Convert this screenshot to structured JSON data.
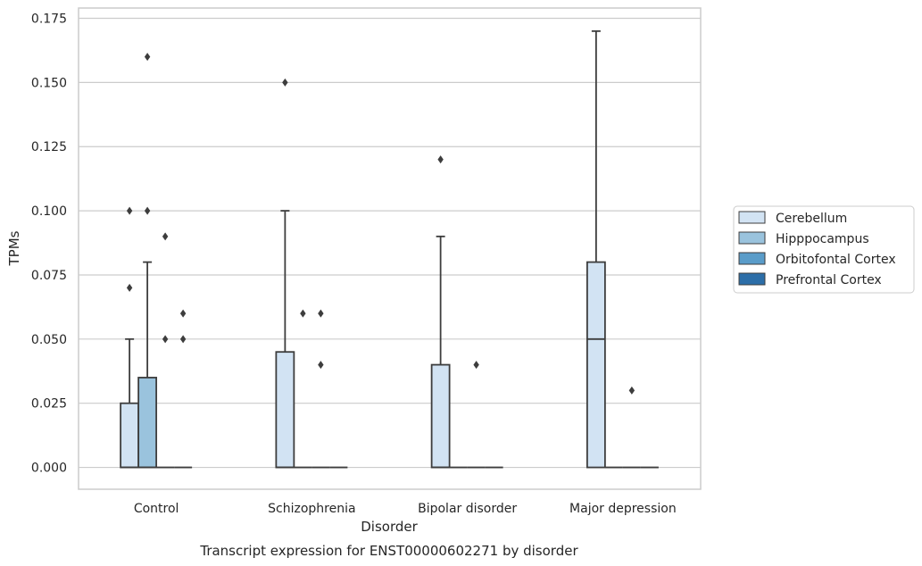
{
  "chart_data": {
    "type": "box",
    "title": "",
    "caption": "Transcript expression for ENST00000602271 by disorder",
    "xlabel": "Disorder",
    "ylabel": "TPMs",
    "ylim": [
      -0.0085,
      0.179
    ],
    "yticks": [
      0.0,
      0.025,
      0.05,
      0.075,
      0.1,
      0.125,
      0.15,
      0.175
    ],
    "ytick_labels": [
      "0.000",
      "0.025",
      "0.050",
      "0.075",
      "0.100",
      "0.125",
      "0.150",
      "0.175"
    ],
    "grid": "horizontal",
    "legend_position": "right",
    "categories": [
      "Control",
      "Schizophrenia",
      "Bipolar disorder",
      "Major depression"
    ],
    "series": [
      {
        "name": "Cerebellum",
        "color": "#d2e3f3",
        "boxes": [
          {
            "q1": 0,
            "median": 0,
            "q3": 0.025,
            "whisker_low": 0,
            "whisker_high": 0.05,
            "outliers": [
              0.07,
              0.1
            ]
          },
          {
            "q1": 0,
            "median": 0,
            "q3": 0.045,
            "whisker_low": 0,
            "whisker_high": 0.1,
            "outliers": [
              0.15
            ]
          },
          {
            "q1": 0,
            "median": 0,
            "q3": 0.04,
            "whisker_low": 0,
            "whisker_high": 0.09,
            "outliers": [
              0.12
            ]
          },
          {
            "q1": 0,
            "median": 0.05,
            "q3": 0.08,
            "whisker_low": 0,
            "whisker_high": 0.17,
            "outliers": []
          }
        ]
      },
      {
        "name": "Hipppocampus",
        "color": "#9ac3dd",
        "boxes": [
          {
            "q1": 0,
            "median": 0,
            "q3": 0.035,
            "whisker_low": 0,
            "whisker_high": 0.08,
            "outliers": [
              0.16,
              0.1
            ]
          },
          {
            "q1": 0,
            "median": 0,
            "q3": 0,
            "whisker_low": 0,
            "whisker_high": 0,
            "outliers": [
              0.06
            ]
          },
          {
            "q1": 0,
            "median": 0,
            "q3": 0,
            "whisker_low": 0,
            "whisker_high": 0,
            "outliers": []
          },
          {
            "q1": 0,
            "median": 0,
            "q3": 0,
            "whisker_low": 0,
            "whisker_high": 0,
            "outliers": []
          }
        ]
      },
      {
        "name": "Orbitofontal Cortex",
        "color": "#5a9cc9",
        "boxes": [
          {
            "q1": 0,
            "median": 0,
            "q3": 0,
            "whisker_low": 0,
            "whisker_high": 0,
            "outliers": [
              0.09,
              0.05
            ]
          },
          {
            "q1": 0,
            "median": 0,
            "q3": 0,
            "whisker_low": 0,
            "whisker_high": 0,
            "outliers": [
              0.06,
              0.04
            ]
          },
          {
            "q1": 0,
            "median": 0,
            "q3": 0,
            "whisker_low": 0,
            "whisker_high": 0,
            "outliers": [
              0.04
            ]
          },
          {
            "q1": 0,
            "median": 0,
            "q3": 0,
            "whisker_low": 0,
            "whisker_high": 0,
            "outliers": [
              0.03
            ]
          }
        ]
      },
      {
        "name": "Prefrontal Cortex",
        "color": "#2c6ea8",
        "boxes": [
          {
            "q1": 0,
            "median": 0,
            "q3": 0,
            "whisker_low": 0,
            "whisker_high": 0,
            "outliers": [
              0.06,
              0.05
            ]
          },
          {
            "q1": 0,
            "median": 0,
            "q3": 0,
            "whisker_low": 0,
            "whisker_high": 0,
            "outliers": []
          },
          {
            "q1": 0,
            "median": 0,
            "q3": 0,
            "whisker_low": 0,
            "whisker_high": 0,
            "outliers": []
          },
          {
            "q1": 0,
            "median": 0,
            "q3": 0,
            "whisker_low": 0,
            "whisker_high": 0,
            "outliers": []
          }
        ]
      }
    ]
  }
}
